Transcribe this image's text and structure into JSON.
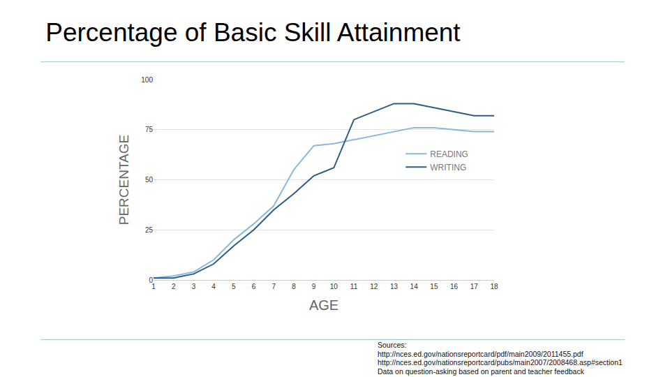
{
  "chart_data": {
    "type": "line",
    "title": "Percentage of Basic Skill Attainment",
    "x_label": "AGE",
    "y_label": "PERCENTAGE",
    "x": [
      1,
      2,
      3,
      4,
      5,
      6,
      7,
      8,
      9,
      10,
      11,
      12,
      13,
      14,
      15,
      16,
      17,
      18
    ],
    "series": [
      {
        "name": "READING",
        "color": "#8ab8dc",
        "values": [
          1,
          2,
          4,
          10,
          20,
          28,
          37,
          55,
          67,
          68,
          70,
          72,
          74,
          76,
          76,
          75,
          74,
          74
        ]
      },
      {
        "name": "WRITING",
        "color": "#2e5b82",
        "values": [
          1,
          1,
          3,
          8,
          17,
          25,
          35,
          43,
          52,
          56,
          80,
          84,
          88,
          88,
          86,
          84,
          82,
          82
        ]
      }
    ],
    "xlim": [
      1,
      18
    ],
    "xticks": [
      1,
      2,
      3,
      4,
      5,
      6,
      7,
      8,
      9,
      10,
      11,
      12,
      13,
      14,
      15,
      16,
      17,
      18
    ],
    "ylim": [
      0,
      100
    ],
    "yticks": [
      0,
      25,
      50,
      75,
      100
    ],
    "grid": true,
    "legend": "right",
    "source": [
      "Sources:",
      "http://nces.ed.gov/nationsreportcard/pdf/main2009/2011455.pdf",
      "http://nces.ed.gov/nationsreportcard/pubs/main2007/2008468.asp#section1",
      "Data on question-asking based on parent and teacher feedback"
    ]
  }
}
